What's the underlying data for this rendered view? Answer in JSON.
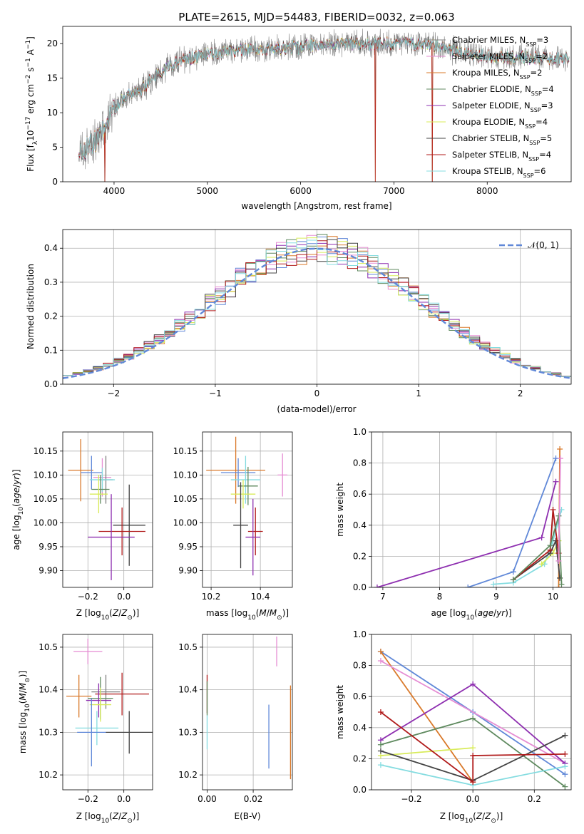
{
  "figure": {
    "title": "PLATE=2615, MJD=54483, FIBERID=0032, z=0.063"
  },
  "colors": {
    "Chabrier MILES": "#808080",
    "Salpeter MILES": "#e58cd3",
    "Kroupa MILES": "#d9792a",
    "Chabrier ELODIE": "#5f8a5f",
    "Salpeter ELODIE": "#8e2fb0",
    "Kroupa ELODIE": "#d8eb5a",
    "Chabrier STELIB": "#444444",
    "Salpeter STELIB": "#b01a1a",
    "Kroupa STELIB": "#84dce0",
    "blue": "#6088d8"
  },
  "chart_data": [
    {
      "id": "spectrum",
      "type": "line",
      "xlabel": "wavelength [Angstrom, rest frame]",
      "ylabel": "Flux [f_λ 10^-17 erg cm^-2 s^-1 A^-1]",
      "xlim": [
        3450,
        8900
      ],
      "ylim": [
        0,
        22.5
      ],
      "xticks": [
        4000,
        5000,
        6000,
        7000,
        8000
      ],
      "yticks": [
        0,
        5,
        10,
        15,
        20
      ],
      "legend_position": "lower-right",
      "legend": [
        {
          "label": "Chabrier MILES, N",
          "sub": "SSP",
          "suffix": "=3",
          "color": "#808080"
        },
        {
          "label": "Salpeter MILES, N",
          "sub": "SSP",
          "suffix": "=2",
          "color": "#e58cd3"
        },
        {
          "label": "Kroupa MILES, N",
          "sub": "SSP",
          "suffix": "=2",
          "color": "#d9792a"
        },
        {
          "label": "Chabrier ELODIE, N",
          "sub": "SSP",
          "suffix": "=4",
          "color": "#5f8a5f"
        },
        {
          "label": "Salpeter ELODIE, N",
          "sub": "SSP",
          "suffix": "=3",
          "color": "#8e2fb0"
        },
        {
          "label": "Kroupa ELODIE, N",
          "sub": "SSP",
          "suffix": "=4",
          "color": "#d8eb5a"
        },
        {
          "label": "Chabrier STELIB, N",
          "sub": "SSP",
          "suffix": "=5",
          "color": "#444444"
        },
        {
          "label": "Salpeter STELIB, N",
          "sub": "SSP",
          "suffix": "=4",
          "color": "#b01a1a"
        },
        {
          "label": "Kroupa STELIB, N",
          "sub": "SSP",
          "suffix": "=6",
          "color": "#84dce0"
        }
      ],
      "continuum": [
        [
          3620,
          4.5
        ],
        [
          3700,
          5
        ],
        [
          3800,
          6
        ],
        [
          3900,
          8
        ],
        [
          4000,
          10.5
        ],
        [
          4100,
          12
        ],
        [
          4300,
          13.5
        ],
        [
          4500,
          16
        ],
        [
          4700,
          17.5
        ],
        [
          5000,
          18.5
        ],
        [
          5300,
          19
        ],
        [
          5600,
          19.2
        ],
        [
          6000,
          19.5
        ],
        [
          6300,
          20
        ],
        [
          6600,
          20
        ],
        [
          6900,
          20
        ],
        [
          7200,
          20
        ],
        [
          7500,
          19.5
        ],
        [
          7800,
          18.5
        ],
        [
          8100,
          18
        ],
        [
          8400,
          18
        ],
        [
          8800,
          17.8
        ]
      ],
      "dropouts": [
        [
          3900,
          0
        ],
        [
          6800,
          0
        ],
        [
          7410,
          0
        ]
      ]
    },
    {
      "id": "residuals",
      "type": "histogram",
      "xlabel": "(data-model)/error",
      "ylabel": "Normed distribution",
      "xlim": [
        -2.5,
        2.5
      ],
      "ylim": [
        0,
        0.455
      ],
      "xticks": [
        -2,
        -1,
        0,
        1,
        2
      ],
      "yticks": [
        0.0,
        0.1,
        0.2,
        0.3,
        0.4
      ],
      "legend": {
        "label": "𝒩(0, 1)",
        "color": "#6088d8",
        "position": "upper-right"
      },
      "bin_width": 0.1
    },
    {
      "id": "age_vs_Z",
      "type": "errorbar",
      "xlabel": "Z [log10(Z/Z⊙)]",
      "ylabel": "age  [log10(age/yr)]",
      "xlim": [
        -0.34,
        0.16
      ],
      "ylim": [
        9.865,
        10.19
      ],
      "xticks": [
        -0.2,
        0.0
      ],
      "yticks": [
        9.9,
        9.95,
        10.0,
        10.05,
        10.1,
        10.15
      ],
      "points": [
        {
          "x": -0.12,
          "xerr": 0.05,
          "y": 10.095,
          "yerr": 0.04,
          "color": "#e58cd3"
        },
        {
          "x": -0.1,
          "xerr": 0.04,
          "y": 10.09,
          "yerr": 0.05,
          "color": "#808080"
        },
        {
          "x": -0.24,
          "xerr": 0.07,
          "y": 10.11,
          "yerr": 0.065,
          "color": "#d9792a"
        },
        {
          "x": -0.18,
          "xerr": 0.06,
          "y": 10.105,
          "yerr": 0.035,
          "color": "#6088d8"
        },
        {
          "x": -0.12,
          "xerr": 0.07,
          "y": 10.09,
          "yerr": 0.025,
          "color": "#84dce0"
        },
        {
          "x": -0.13,
          "xerr": 0.05,
          "y": 10.07,
          "yerr": 0.03,
          "color": "#5f8a5f"
        },
        {
          "x": -0.14,
          "xerr": 0.05,
          "y": 10.06,
          "yerr": 0.04,
          "color": "#d8eb5a"
        },
        {
          "x": 0.03,
          "xerr": 0.09,
          "y": 9.995,
          "yerr": 0.085,
          "color": "#444444"
        },
        {
          "x": -0.01,
          "xerr": 0.13,
          "y": 9.982,
          "yerr": 0.05,
          "color": "#b01a1a"
        },
        {
          "x": -0.07,
          "xerr": 0.13,
          "y": 9.97,
          "yerr": 0.09,
          "color": "#8e2fb0"
        }
      ]
    },
    {
      "id": "age_vs_mass",
      "type": "errorbar",
      "xlabel": "mass [log10(M/M⊙)]",
      "ylabel": "",
      "xlim": [
        10.165,
        10.53
      ],
      "ylim": [
        9.865,
        10.19
      ],
      "xticks": [
        10.2,
        10.4
      ],
      "yticks": [
        9.9,
        9.95,
        10.0,
        10.05,
        10.1,
        10.15
      ],
      "points": [
        {
          "x": 10.49,
          "xerr": 0.02,
          "y": 10.1,
          "yerr": 0.045,
          "color": "#e58cd3"
        },
        {
          "x": 10.3,
          "xerr": 0.12,
          "y": 10.11,
          "yerr": 0.07,
          "color": "#d9792a"
        },
        {
          "x": 10.31,
          "xerr": 0.07,
          "y": 10.105,
          "yerr": 0.03,
          "color": "#6088d8"
        },
        {
          "x": 10.34,
          "xerr": 0.06,
          "y": 10.09,
          "yerr": 0.05,
          "color": "#84dce0"
        },
        {
          "x": 10.35,
          "xerr": 0.04,
          "y": 10.077,
          "yerr": 0.04,
          "color": "#5f8a5f"
        },
        {
          "x": 10.33,
          "xerr": 0.05,
          "y": 10.06,
          "yerr": 0.03,
          "color": "#d8eb5a"
        },
        {
          "x": 10.32,
          "xerr": 0.03,
          "y": 9.995,
          "yerr": 0.09,
          "color": "#444444"
        },
        {
          "x": 10.38,
          "xerr": 0.03,
          "y": 9.982,
          "yerr": 0.05,
          "color": "#b01a1a"
        },
        {
          "x": 10.37,
          "xerr": 0.03,
          "y": 9.97,
          "yerr": 0.08,
          "color": "#8e2fb0"
        }
      ]
    },
    {
      "id": "weight_vs_age",
      "type": "line",
      "xlabel": "age  [log10(age/yr)]",
      "ylabel": "mass weight",
      "xlim": [
        6.8,
        10.32
      ],
      "ylim": [
        0,
        1.0
      ],
      "xticks": [
        7,
        8,
        9,
        10
      ],
      "yticks": [
        0.0,
        0.2,
        0.4,
        0.6,
        0.8,
        1.0
      ],
      "series": [
        {
          "color": "#8e2fb0",
          "x": [
            6.9,
            9.8,
            10.05
          ],
          "y": [
            0.0,
            0.32,
            0.68
          ]
        },
        {
          "color": "#6088d8",
          "x": [
            8.5,
            9.3,
            10.05
          ],
          "y": [
            0.0,
            0.1,
            0.83
          ]
        },
        {
          "color": "#d9792a",
          "x": [
            10.1,
            10.12
          ],
          "y": [
            0.0,
            0.89
          ]
        },
        {
          "color": "#84dce0",
          "x": [
            8.95,
            9.3,
            9.85,
            10.0,
            10.15
          ],
          "y": [
            0.02,
            0.03,
            0.15,
            0.3,
            0.5
          ]
        },
        {
          "color": "#d8eb5a",
          "x": [
            9.8,
            10.0,
            10.1
          ],
          "y": [
            0.15,
            0.22,
            0.3
          ]
        },
        {
          "color": "#444444",
          "x": [
            9.3,
            9.95,
            10.05,
            10.12
          ],
          "y": [
            0.05,
            0.22,
            0.3,
            0.06
          ]
        },
        {
          "color": "#b01a1a",
          "x": [
            9.3,
            9.95,
            10.0,
            10.1
          ],
          "y": [
            0.05,
            0.24,
            0.5,
            0.22
          ]
        },
        {
          "color": "#5f8a5f",
          "x": [
            9.3,
            9.95,
            10.1,
            10.15
          ],
          "y": [
            0.05,
            0.27,
            0.46,
            0.02
          ]
        },
        {
          "color": "#e58cd3",
          "x": [
            10.1,
            10.13
          ],
          "y": [
            0.17,
            0.83
          ]
        }
      ]
    },
    {
      "id": "mass_vs_Z",
      "type": "errorbar",
      "xlabel": "Z [log10(Z/Z⊙)]",
      "ylabel": "mass [log10(M/M⊙)]",
      "xlim": [
        -0.34,
        0.16
      ],
      "ylim": [
        10.165,
        10.53
      ],
      "xticks": [
        -0.2,
        0.0
      ],
      "yticks": [
        10.2,
        10.3,
        10.4,
        10.5
      ],
      "points": [
        {
          "x": -0.2,
          "xerr": 0.08,
          "y": 10.49,
          "yerr": 0.03,
          "color": "#e58cd3"
        },
        {
          "x": -0.25,
          "xerr": 0.07,
          "y": 10.385,
          "yerr": 0.05,
          "color": "#d9792a"
        },
        {
          "x": -0.1,
          "xerr": 0.08,
          "y": 10.395,
          "yerr": 0.04,
          "color": "#808080"
        },
        {
          "x": -0.01,
          "xerr": 0.15,
          "y": 10.39,
          "yerr": 0.05,
          "color": "#b01a1a"
        },
        {
          "x": -0.13,
          "xerr": 0.07,
          "y": 10.38,
          "yerr": 0.05,
          "color": "#5f8a5f"
        },
        {
          "x": -0.14,
          "xerr": 0.07,
          "y": 10.375,
          "yerr": 0.04,
          "color": "#8e2fb0"
        },
        {
          "x": -0.13,
          "xerr": 0.06,
          "y": 10.365,
          "yerr": 0.04,
          "color": "#d8eb5a"
        },
        {
          "x": -0.15,
          "xerr": 0.12,
          "y": 10.31,
          "yerr": 0.04,
          "color": "#84dce0"
        },
        {
          "x": -0.18,
          "xerr": 0.08,
          "y": 10.3,
          "yerr": 0.08,
          "color": "#6088d8"
        },
        {
          "x": 0.03,
          "xerr": 0.13,
          "y": 10.3,
          "yerr": 0.05,
          "color": "#444444"
        }
      ]
    },
    {
      "id": "mass_vs_ebv",
      "type": "errorbar",
      "xlabel": "E(B-V)",
      "ylabel": "",
      "xlim": [
        -0.002,
        0.037
      ],
      "ylim": [
        10.165,
        10.53
      ],
      "xticks": [
        0.0,
        0.02
      ],
      "xtick_labels": [
        "0.00",
        "0.02"
      ],
      "yticks": [
        10.2,
        10.3,
        10.4,
        10.5
      ],
      "points": [
        {
          "x": 0.0302,
          "xerr": 0,
          "y": 10.49,
          "yerr": 0.035,
          "color": "#e58cd3"
        },
        {
          "x": 0.0362,
          "xerr": 0,
          "y": 10.3,
          "yerr": 0.11,
          "color": "#d9792a"
        },
        {
          "x": 0.0268,
          "xerr": 0,
          "y": 10.29,
          "yerr": 0.075,
          "color": "#6088d8"
        },
        {
          "x": 0.0,
          "xerr": 0,
          "y": 10.39,
          "yerr": 0.045,
          "color": "#b01a1a"
        },
        {
          "x": 0.0,
          "xerr": 0,
          "y": 10.38,
          "yerr": 0.04,
          "color": "#5f8a5f"
        },
        {
          "x": 0.0,
          "xerr": 0,
          "y": 10.3,
          "yerr": 0.04,
          "color": "#84dce0"
        }
      ]
    },
    {
      "id": "weight_vs_Z",
      "type": "line",
      "xlabel": "Z [log10(Z/Z⊙)]",
      "ylabel": "mass weight",
      "xlim": [
        -0.33,
        0.32
      ],
      "ylim": [
        0,
        1.0
      ],
      "xticks": [
        -0.2,
        0.0,
        0.2
      ],
      "yticks": [
        0.0,
        0.2,
        0.4,
        0.6,
        0.8,
        1.0
      ],
      "series": [
        {
          "color": "#6088d8",
          "x": [
            -0.3,
            0.0,
            0.3
          ],
          "y": [
            0.89,
            0.5,
            0.1
          ]
        },
        {
          "color": "#d9792a",
          "x": [
            -0.3,
            0.0
          ],
          "y": [
            0.89,
            0.05
          ]
        },
        {
          "color": "#e58cd3",
          "x": [
            -0.3,
            0.3
          ],
          "y": [
            0.83,
            0.17
          ]
        },
        {
          "color": "#8e2fb0",
          "x": [
            -0.3,
            0.0,
            0.3
          ],
          "y": [
            0.32,
            0.68,
            0.17
          ]
        },
        {
          "color": "#5f8a5f",
          "x": [
            -0.3,
            0.0,
            0.3
          ],
          "y": [
            0.29,
            0.46,
            0.02
          ]
        },
        {
          "color": "#84dce0",
          "x": [
            -0.3,
            0.0,
            0.3
          ],
          "y": [
            0.16,
            0.03,
            0.15
          ]
        },
        {
          "color": "#d8eb5a",
          "x": [
            -0.3,
            0.0
          ],
          "y": [
            0.22,
            0.27
          ]
        },
        {
          "color": "#444444",
          "x": [
            -0.3,
            0.0,
            0.3
          ],
          "y": [
            0.25,
            0.06,
            0.35
          ]
        },
        {
          "color": "#b01a1a",
          "x": [
            -0.3,
            0.0,
            0.0,
            0.3
          ],
          "y": [
            0.5,
            0.05,
            0.22,
            0.23
          ]
        }
      ]
    }
  ]
}
